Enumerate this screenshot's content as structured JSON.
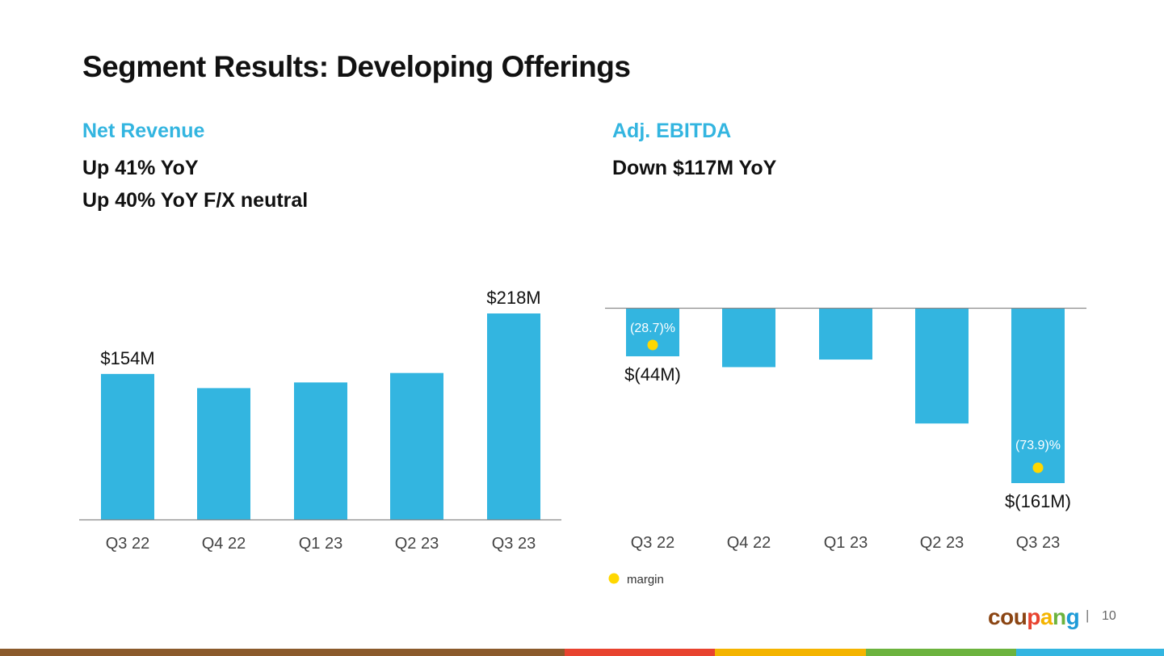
{
  "title": "Segment Results: Developing Offerings",
  "left": {
    "heading": "Net Revenue",
    "line1": "Up 41% YoY",
    "line2": "Up 40% YoY F/X neutral"
  },
  "right": {
    "heading": "Adj. EBITDA",
    "line1": "Down $117M YoY"
  },
  "chart_data": [
    {
      "type": "bar",
      "title": "Net Revenue",
      "categories": [
        "Q3 22",
        "Q4 22",
        "Q1 23",
        "Q2 23",
        "Q3 23"
      ],
      "values": [
        154,
        139,
        145,
        155,
        218
      ],
      "units": "$M",
      "data_labels": [
        "$154M",
        "",
        "",
        "",
        "$218M"
      ],
      "ylim": [
        0,
        240
      ],
      "color": "#33b5e0"
    },
    {
      "type": "bar",
      "title": "Adj. EBITDA",
      "categories": [
        "Q3 22",
        "Q4 22",
        "Q1 23",
        "Q2 23",
        "Q3 23"
      ],
      "values": [
        -44,
        -54,
        -47,
        -106,
        -161
      ],
      "units": "$M",
      "data_labels": [
        "$(44M)",
        "",
        "",
        "",
        "$(161M)"
      ],
      "margin_labels": [
        "(28.7)%",
        "",
        "",
        "",
        "(73.9)%"
      ],
      "ylim": [
        -200,
        0
      ],
      "color": "#33b5e0",
      "margin_color": "#ffd700",
      "legend": "margin"
    }
  ],
  "footer": {
    "logo_letters": [
      "c",
      "o",
      "u",
      "p",
      "a",
      "n",
      "g"
    ],
    "logo_colors": [
      "#8b4513",
      "#8b4513",
      "#8b4513",
      "#e8432f",
      "#f4b400",
      "#6cb33e",
      "#1e9bd7"
    ],
    "separator": "|",
    "page": "10"
  },
  "stripe_colors": [
    "#8b5a2b",
    "#e8432f",
    "#f4b400",
    "#6cb33e",
    "#33b5e0"
  ]
}
